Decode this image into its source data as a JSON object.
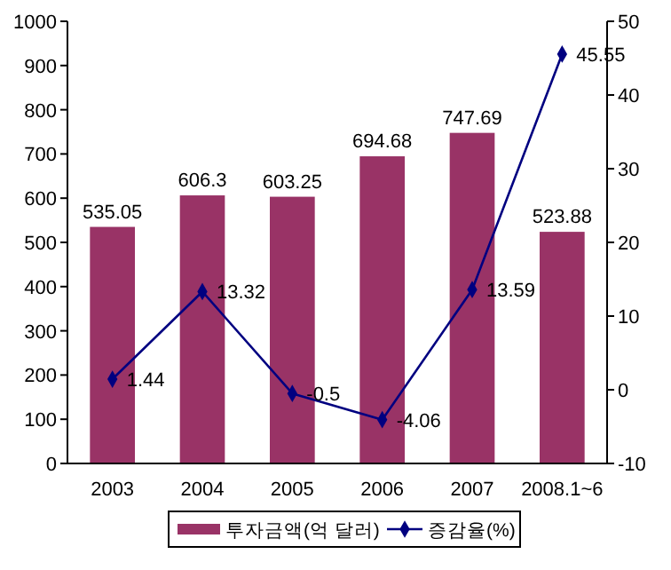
{
  "chart_data": {
    "type": "bar",
    "categories": [
      "2003",
      "2004",
      "2005",
      "2006",
      "2007",
      "2008.1~6"
    ],
    "series": [
      {
        "name": "투자금액(억 달러)",
        "color": "#993366",
        "values": [
          535.05,
          606.3,
          603.25,
          694.68,
          747.69,
          523.88
        ]
      },
      {
        "name": "증감율(%)",
        "type": "line",
        "axis": "y2",
        "color": "#000080",
        "values": [
          1.44,
          13.32,
          -0.5,
          -4.06,
          13.59,
          45.55
        ]
      }
    ],
    "ylim": [
      0,
      1000
    ],
    "yticks": [
      0,
      100,
      200,
      300,
      400,
      500,
      600,
      700,
      800,
      900,
      1000
    ],
    "y2lim": [
      -10,
      50
    ],
    "y2ticks": [
      -10,
      0,
      10,
      20,
      30,
      40,
      50
    ],
    "data_labels": true,
    "marker": "diamond",
    "legend": "bottom",
    "grid": false
  }
}
